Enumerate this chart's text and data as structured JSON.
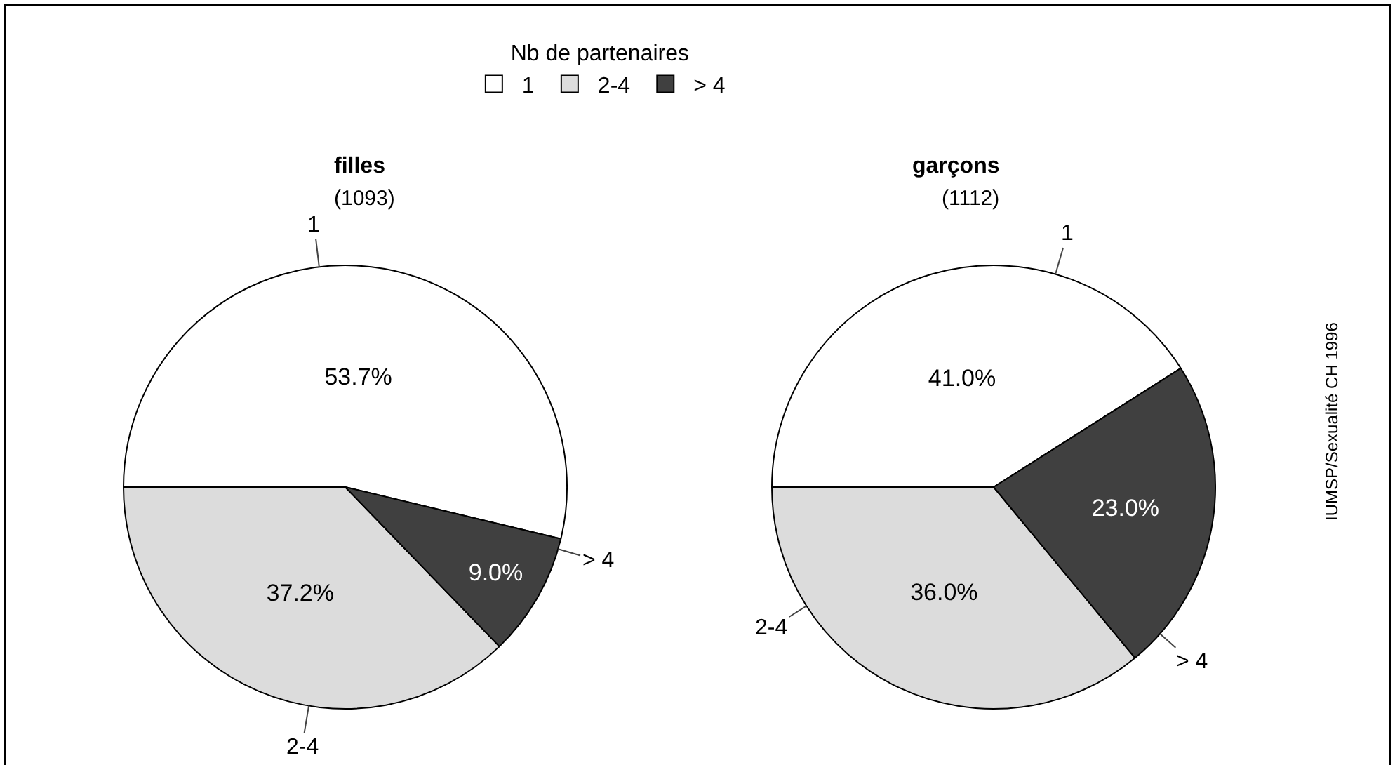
{
  "chart_data": [
    {
      "type": "pie",
      "title": "filles",
      "subtitle": "(1093)",
      "categories": [
        "1",
        "2-4",
        "> 4"
      ],
      "values": [
        53.7,
        37.2,
        9.0
      ],
      "colors": [
        "#ffffff",
        "#dcdcdc",
        "#404040"
      ],
      "value_labels": [
        "53.7%",
        "37.2%",
        "9.0%"
      ],
      "legend": "top",
      "legend_title": "Nb de partenaires"
    },
    {
      "type": "pie",
      "title": "garçons",
      "subtitle": "(1112)",
      "categories": [
        "1",
        "2-4",
        "> 4"
      ],
      "values": [
        41.0,
        36.0,
        23.0
      ],
      "colors": [
        "#ffffff",
        "#dcdcdc",
        "#404040"
      ],
      "value_labels": [
        "41.0%",
        "36.0%",
        "23.0%"
      ],
      "annotations": [
        "IUMSP/Sexualité CH 1996"
      ]
    }
  ]
}
